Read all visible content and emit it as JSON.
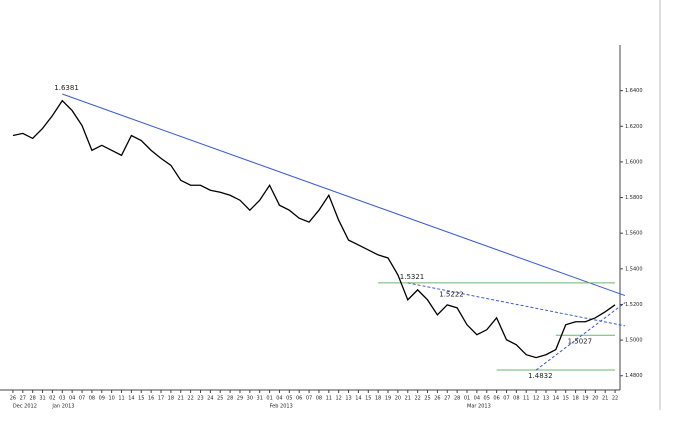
{
  "chart_data": {
    "type": "line",
    "categories": [
      "26",
      "27",
      "28",
      "31",
      "02",
      "03",
      "04",
      "07",
      "08",
      "09",
      "10",
      "11",
      "14",
      "15",
      "16",
      "17",
      "18",
      "21",
      "22",
      "23",
      "24",
      "25",
      "28",
      "29",
      "30",
      "31",
      "01",
      "04",
      "05",
      "06",
      "07",
      "08",
      "11",
      "12",
      "13",
      "14",
      "15",
      "18",
      "19",
      "20",
      "21",
      "22",
      "25",
      "26",
      "27",
      "28",
      "01",
      "04",
      "05",
      "06",
      "07",
      "08",
      "11",
      "12",
      "13",
      "14",
      "15",
      "18",
      "19",
      "20",
      "21",
      "22"
    ],
    "month_labels": [
      "Dec 2012",
      "Jan 2013",
      "Feb 2013",
      "Mar 2013"
    ],
    "series": [
      {
        "color": "#000000",
        "values": [
          1.6148,
          1.616,
          1.6132,
          1.6188,
          1.626,
          1.6344,
          1.6288,
          1.6204,
          1.6065,
          1.6093,
          1.6065,
          1.6037,
          1.6148,
          1.612,
          1.6065,
          1.602,
          1.5981,
          1.5897,
          1.5869,
          1.5869,
          1.5841,
          1.583,
          1.5813,
          1.5785,
          1.5729,
          1.5785,
          1.5869,
          1.5757,
          1.5729,
          1.5684,
          1.5662,
          1.5729,
          1.5813,
          1.5673,
          1.5561,
          1.5534,
          1.5506,
          1.5478,
          1.5461,
          1.5366,
          1.5226,
          1.5282,
          1.5226,
          1.5142,
          1.5198,
          1.5181,
          1.5086,
          1.503,
          1.5058,
          1.5125,
          1.5002,
          1.4974,
          1.4918,
          1.4902,
          1.4918,
          1.4947,
          1.5086,
          1.5103,
          1.5103,
          1.5125,
          1.5159,
          1.5198
        ]
      }
    ],
    "ylim": [
      1.472,
      1.66
    ],
    "yticks": [
      {
        "value": 1.64,
        "label": "1.6400"
      },
      {
        "value": 1.62,
        "label": "1.6200"
      },
      {
        "value": 1.6,
        "label": "1.6000"
      },
      {
        "value": 1.58,
        "label": "1.5800"
      },
      {
        "value": 1.56,
        "label": "1.5600"
      },
      {
        "value": 1.54,
        "label": "1.5400"
      },
      {
        "value": 1.52,
        "label": "1.5200"
      },
      {
        "value": 1.5,
        "label": "1.5000"
      },
      {
        "value": 1.48,
        "label": "1.4800"
      }
    ],
    "annotations": [
      {
        "value": 1.6381,
        "index": 5
      },
      {
        "value": 1.5321,
        "index": 40
      },
      {
        "value": 1.5222,
        "index": 44
      },
      {
        "value": 1.5027,
        "index": 57
      },
      {
        "value": 1.4832,
        "index": 53
      }
    ],
    "trendlines": [
      {
        "from": [
          5,
          1.6381
        ],
        "to": [
          62,
          1.525
        ],
        "color": "#3a5bd0",
        "dash": false
      },
      {
        "from": [
          37,
          1.5321
        ],
        "to": [
          61,
          1.5321
        ],
        "color": "#6fb36f",
        "dash": false
      },
      {
        "from": [
          49,
          1.4832
        ],
        "to": [
          61,
          1.4832
        ],
        "color": "#6fb36f",
        "dash": false
      },
      {
        "from": [
          55,
          1.5027
        ],
        "to": [
          61,
          1.5027
        ],
        "color": "#6fb36f",
        "dash": false
      },
      {
        "from": [
          40,
          1.5321
        ],
        "to": [
          62,
          1.508
        ],
        "color": "#3a5bd0",
        "dash": true
      },
      {
        "from": [
          53,
          1.4832
        ],
        "to": [
          62,
          1.521
        ],
        "color": "#3a5bd0",
        "dash": true
      }
    ]
  }
}
